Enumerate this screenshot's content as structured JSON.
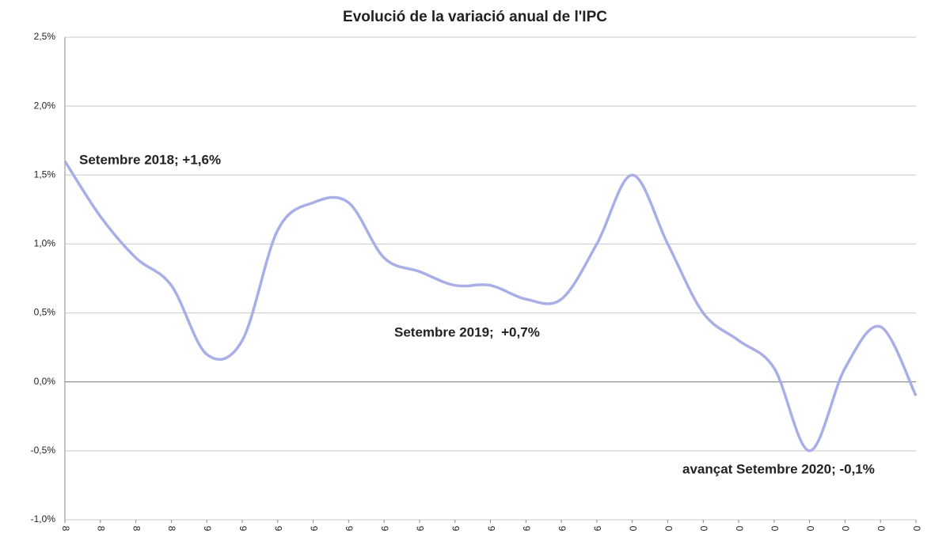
{
  "chart_data": {
    "type": "line",
    "title": "Evolució de la variació anual de l'IPC",
    "categories": [
      "8",
      "8",
      "8",
      "8",
      "9",
      "9",
      "9",
      "9",
      "9",
      "9",
      "9",
      "9",
      "9",
      "9",
      "9",
      "9",
      "0",
      "0",
      "0",
      "0",
      "0",
      "0",
      "0",
      "0",
      "0"
    ],
    "series": [
      {
        "color": "#a9aee6",
        "values": [
          1.6,
          1.2,
          0.9,
          0.7,
          0.2,
          0.3,
          1.1,
          1.3,
          1.3,
          0.9,
          0.8,
          0.7,
          0.7,
          0.6,
          0.6,
          1.0,
          1.5,
          1.0,
          0.5,
          0.3,
          0.1,
          -0.5,
          0.1,
          0.4,
          -0.1
        ]
      }
    ],
    "ylim": [
      -1.0,
      2.5
    ],
    "yticks": [
      {
        "value": -1.0,
        "label": "-1,0%"
      },
      {
        "value": -0.5,
        "label": "-0,5%"
      },
      {
        "value": 0,
        "label": "0,0%"
      },
      {
        "value": 0.5,
        "label": "0,5%"
      },
      {
        "value": 1.0,
        "label": "1,0%"
      },
      {
        "value": 1.5,
        "label": "1,5%"
      },
      {
        "value": 2.0,
        "label": "2,0%"
      },
      {
        "value": 2.5,
        "label": "2,5%"
      }
    ],
    "grid": true,
    "annotations": [
      "Setembre 2018; +1,6%",
      "Setembre 2019;  +0,7%",
      "avançat Setembre 2020; -0,1%"
    ]
  }
}
